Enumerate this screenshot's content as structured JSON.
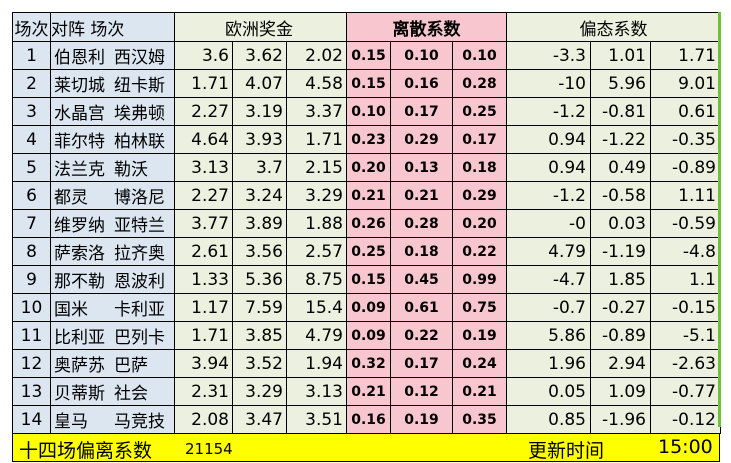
{
  "headers": {
    "no": "场次",
    "teams": "对阵 场次",
    "odds": "欧洲奖金",
    "dispersion": "离散系数",
    "skew": "偏态系数"
  },
  "rows": [
    {
      "no": "1",
      "home": "伯恩利",
      "away": "西汉姆",
      "odds": [
        "3.6",
        "3.62",
        "2.02"
      ],
      "disp": [
        "0.15",
        "0.10",
        "0.10"
      ],
      "skew": [
        "-3.3",
        "1.01",
        "1.71"
      ]
    },
    {
      "no": "2",
      "home": "莱切城",
      "away": "纽卡斯",
      "odds": [
        "1.71",
        "4.07",
        "4.58"
      ],
      "disp": [
        "0.15",
        "0.16",
        "0.28"
      ],
      "skew": [
        "-10",
        "5.96",
        "9.01"
      ]
    },
    {
      "no": "3",
      "home": "水晶宫",
      "away": "埃弗顿",
      "odds": [
        "2.27",
        "3.19",
        "3.37"
      ],
      "disp": [
        "0.10",
        "0.17",
        "0.25"
      ],
      "skew": [
        "-1.2",
        "-0.81",
        "0.61"
      ]
    },
    {
      "no": "4",
      "home": "菲尔特",
      "away": "柏林联",
      "odds": [
        "4.64",
        "3.93",
        "1.71"
      ],
      "disp": [
        "0.23",
        "0.29",
        "0.17"
      ],
      "skew": [
        "0.94",
        "-1.22",
        "-0.35"
      ]
    },
    {
      "no": "5",
      "home": "法兰克",
      "away": "勒沃",
      "odds": [
        "3.13",
        "3.7",
        "2.15"
      ],
      "disp": [
        "0.20",
        "0.13",
        "0.18"
      ],
      "skew": [
        "0.94",
        "0.49",
        "-0.89"
      ]
    },
    {
      "no": "6",
      "home": "都灵",
      "away": "博洛尼",
      "odds": [
        "2.27",
        "3.24",
        "3.29"
      ],
      "disp": [
        "0.21",
        "0.21",
        "0.29"
      ],
      "skew": [
        "-1.2",
        "-0.58",
        "1.11"
      ]
    },
    {
      "no": "7",
      "home": "维罗纳",
      "away": "亚特兰",
      "odds": [
        "3.77",
        "3.89",
        "1.88"
      ],
      "disp": [
        "0.26",
        "0.28",
        "0.20"
      ],
      "skew": [
        "-0",
        "0.03",
        "-0.59"
      ]
    },
    {
      "no": "8",
      "home": "萨索洛",
      "away": "拉齐奥",
      "odds": [
        "2.61",
        "3.56",
        "2.57"
      ],
      "disp": [
        "0.25",
        "0.18",
        "0.22"
      ],
      "skew": [
        "4.79",
        "-1.19",
        "-4.8"
      ]
    },
    {
      "no": "9",
      "home": "那不勒",
      "away": "恩波利",
      "odds": [
        "1.33",
        "5.36",
        "8.75"
      ],
      "disp": [
        "0.15",
        "0.45",
        "0.99"
      ],
      "skew": [
        "-4.7",
        "1.85",
        "1.1"
      ]
    },
    {
      "no": "10",
      "home": "国米",
      "away": "卡利亚",
      "odds": [
        "1.17",
        "7.59",
        "15.4"
      ],
      "disp": [
        "0.09",
        "0.61",
        "0.75"
      ],
      "skew": [
        "-0.7",
        "-0.27",
        "-0.15"
      ]
    },
    {
      "no": "11",
      "home": "比利亚",
      "away": "巴列卡",
      "odds": [
        "1.71",
        "3.85",
        "4.79"
      ],
      "disp": [
        "0.09",
        "0.22",
        "0.19"
      ],
      "skew": [
        "5.86",
        "-0.89",
        "-5.1"
      ]
    },
    {
      "no": "12",
      "home": "奥萨苏",
      "away": "巴萨",
      "odds": [
        "3.94",
        "3.52",
        "1.94"
      ],
      "disp": [
        "0.32",
        "0.17",
        "0.24"
      ],
      "skew": [
        "1.96",
        "2.94",
        "-2.63"
      ]
    },
    {
      "no": "13",
      "home": "贝蒂斯",
      "away": "社会",
      "odds": [
        "2.31",
        "3.29",
        "3.13"
      ],
      "disp": [
        "0.21",
        "0.12",
        "0.21"
      ],
      "skew": [
        "0.05",
        "1.09",
        "-0.77"
      ]
    },
    {
      "no": "14",
      "home": "皇马",
      "away": "马竞技",
      "odds": [
        "2.08",
        "3.47",
        "3.51"
      ],
      "disp": [
        "0.16",
        "0.19",
        "0.35"
      ],
      "skew": [
        "0.85",
        "-1.96",
        "-0.12"
      ]
    }
  ],
  "footer": {
    "label": "十四场偏离系数",
    "code": "21154",
    "update_label": "更新时间",
    "time": "15:00"
  },
  "colors": {
    "header_blue": "#dce6f1",
    "odds_green": "#ebf1de",
    "dispersion_pink": "#f8c6cf",
    "footer_yellow": "#ffff00"
  }
}
